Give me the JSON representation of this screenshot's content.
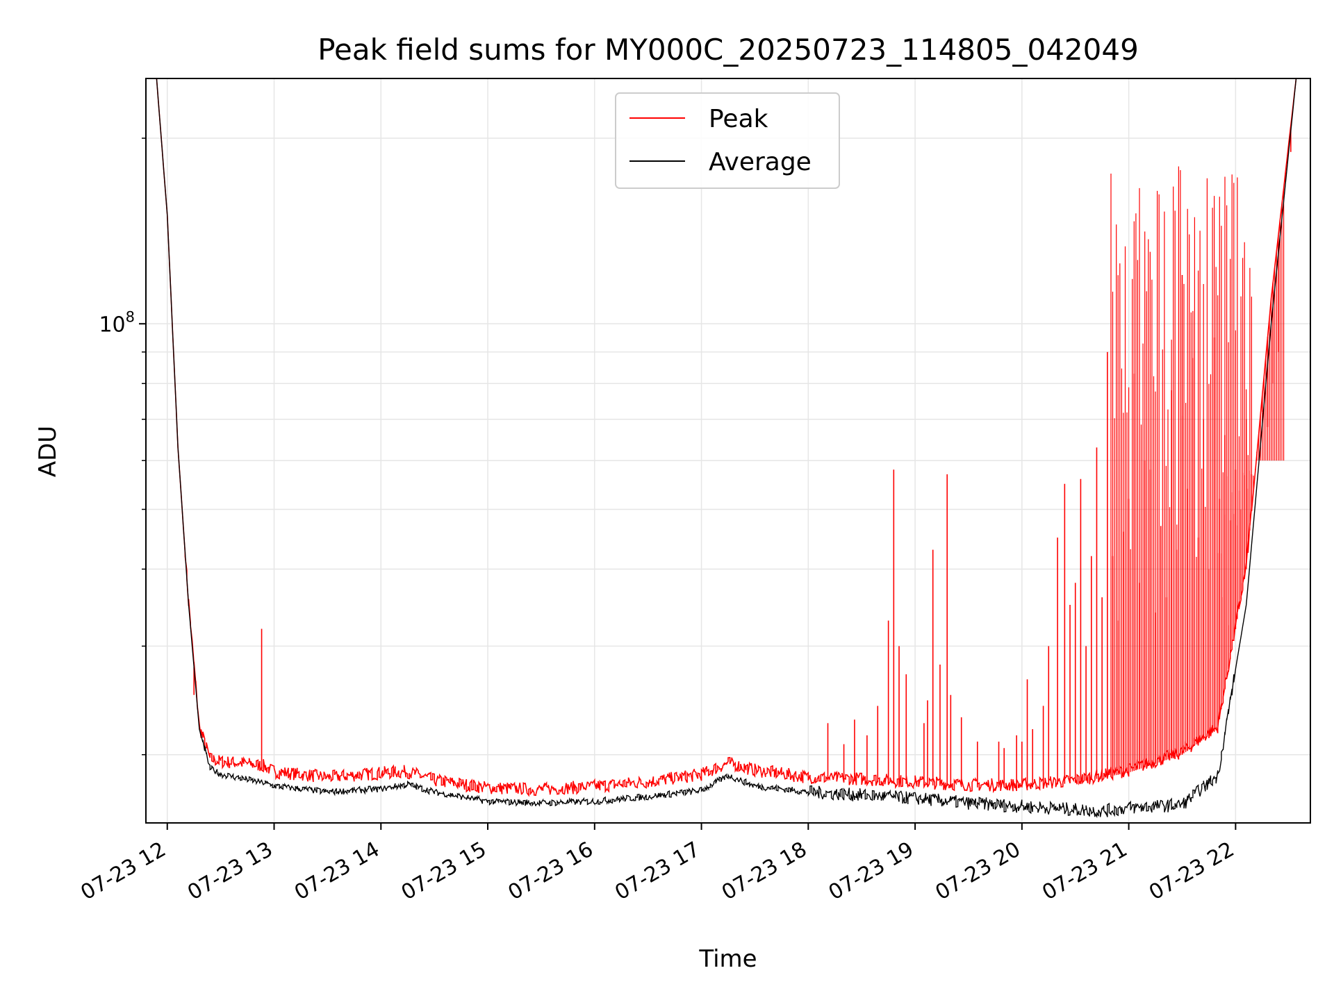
{
  "chart_data": {
    "type": "line",
    "title": "Peak field sums for MY000C_20250723_114805_042049",
    "xlabel": "Time",
    "ylabel": "ADU",
    "y_scale": "log",
    "y_tick_labels": [
      {
        "value": 100000000,
        "base": "10",
        "exp": "8"
      }
    ],
    "y_minor_ticks": [
      20000000,
      30000000,
      40000000,
      50000000,
      60000000,
      70000000,
      80000000,
      90000000,
      200000000
    ],
    "ylim": [
      15500000,
      250000000
    ],
    "xlim": [
      "07-23 11:48",
      "07-23 22:42"
    ],
    "x_ticks": [
      {
        "time": "07-23 12:00",
        "label": "07-23 12"
      },
      {
        "time": "07-23 13:00",
        "label": "07-23 13"
      },
      {
        "time": "07-23 14:00",
        "label": "07-23 14"
      },
      {
        "time": "07-23 15:00",
        "label": "07-23 15"
      },
      {
        "time": "07-23 16:00",
        "label": "07-23 16"
      },
      {
        "time": "07-23 17:00",
        "label": "07-23 17"
      },
      {
        "time": "07-23 18:00",
        "label": "07-23 18"
      },
      {
        "time": "07-23 19:00",
        "label": "07-23 19"
      },
      {
        "time": "07-23 20:00",
        "label": "07-23 20"
      },
      {
        "time": "07-23 21:00",
        "label": "07-23 21"
      },
      {
        "time": "07-23 22:00",
        "label": "07-23 22"
      }
    ],
    "grid": true,
    "legend_position": "top-center",
    "series": [
      {
        "name": "Peak",
        "color": "#ff0000",
        "points": [
          [
            "07-23 11:54",
            250000000
          ],
          [
            "07-23 12:00",
            150000000
          ],
          [
            "07-23 12:06",
            63000000
          ],
          [
            "07-23 12:12",
            35000000
          ],
          [
            "07-23 12:18",
            22000000
          ],
          [
            "07-23 12:24",
            19500000
          ],
          [
            "07-23 12:30",
            19300000
          ],
          [
            "07-23 12:42",
            19200000
          ],
          [
            "07-23 12:54",
            19000000
          ],
          [
            "07-23 13:00",
            18600000
          ],
          [
            "07-23 13:30",
            18200000
          ],
          [
            "07-23 14:00",
            18500000
          ],
          [
            "07-23 14:15",
            18600000
          ],
          [
            "07-23 14:30",
            18000000
          ],
          [
            "07-23 15:00",
            17500000
          ],
          [
            "07-23 15:30",
            17400000
          ],
          [
            "07-23 16:00",
            17600000
          ],
          [
            "07-23 16:30",
            17900000
          ],
          [
            "07-23 17:00",
            18400000
          ],
          [
            "07-23 17:15",
            19200000
          ],
          [
            "07-23 17:30",
            18700000
          ],
          [
            "07-23 18:00",
            18200000
          ],
          [
            "07-23 18:30",
            18100000
          ],
          [
            "07-23 19:00",
            17900000
          ],
          [
            "07-23 19:30",
            17700000
          ],
          [
            "07-23 20:00",
            17700000
          ],
          [
            "07-23 20:30",
            18000000
          ],
          [
            "07-23 21:00",
            18700000
          ],
          [
            "07-23 21:30",
            20000000
          ],
          [
            "07-23 21:50",
            22000000
          ],
          [
            "07-23 22:06",
            40000000
          ],
          [
            "07-23 22:20",
            110000000
          ],
          [
            "07-23 22:34",
            250000000
          ]
        ]
      },
      {
        "name": "Average",
        "color": "#000000",
        "points": [
          [
            "07-23 11:54",
            250000000
          ],
          [
            "07-23 12:00",
            150000000
          ],
          [
            "07-23 12:06",
            63000000
          ],
          [
            "07-23 12:12",
            35000000
          ],
          [
            "07-23 12:18",
            22000000
          ],
          [
            "07-23 12:24",
            19000000
          ],
          [
            "07-23 12:30",
            18600000
          ],
          [
            "07-23 12:42",
            18300000
          ],
          [
            "07-23 12:54",
            18000000
          ],
          [
            "07-23 13:00",
            17800000
          ],
          [
            "07-23 13:30",
            17400000
          ],
          [
            "07-23 14:00",
            17600000
          ],
          [
            "07-23 14:15",
            17900000
          ],
          [
            "07-23 14:30",
            17400000
          ],
          [
            "07-23 15:00",
            16800000
          ],
          [
            "07-23 15:30",
            16700000
          ],
          [
            "07-23 16:00",
            16800000
          ],
          [
            "07-23 16:30",
            17100000
          ],
          [
            "07-23 17:00",
            17500000
          ],
          [
            "07-23 17:15",
            18500000
          ],
          [
            "07-23 17:30",
            17800000
          ],
          [
            "07-23 18:00",
            17400000
          ],
          [
            "07-23 18:30",
            17200000
          ],
          [
            "07-23 19:00",
            17000000
          ],
          [
            "07-23 19:30",
            16700000
          ],
          [
            "07-23 20:00",
            16500000
          ],
          [
            "07-23 20:45",
            16200000
          ],
          [
            "07-23 21:00",
            16400000
          ],
          [
            "07-23 21:30",
            16600000
          ],
          [
            "07-23 21:50",
            18500000
          ],
          [
            "07-23 22:06",
            35000000
          ],
          [
            "07-23 22:20",
            100000000
          ],
          [
            "07-23 22:34",
            250000000
          ]
        ]
      }
    ],
    "peak_spikes": [
      [
        "07-23 12:15",
        25000000
      ],
      [
        "07-23 12:18",
        22000000
      ],
      [
        "07-23 12:53",
        32000000
      ],
      [
        "07-23 18:11",
        22500000
      ],
      [
        "07-23 18:20",
        20800000
      ],
      [
        "07-23 18:26",
        22800000
      ],
      [
        "07-23 18:33",
        21500000
      ],
      [
        "07-23 18:39",
        24000000
      ],
      [
        "07-23 18:45",
        33000000
      ],
      [
        "07-23 18:48",
        58000000
      ],
      [
        "07-23 18:51",
        30000000
      ],
      [
        "07-23 18:55",
        27000000
      ],
      [
        "07-23 19:05",
        22500000
      ],
      [
        "07-23 19:07",
        24500000
      ],
      [
        "07-23 19:10",
        43000000
      ],
      [
        "07-23 19:14",
        28000000
      ],
      [
        "07-23 19:18",
        57000000
      ],
      [
        "07-23 19:20",
        25000000
      ],
      [
        "07-23 19:26",
        23000000
      ],
      [
        "07-23 19:35",
        21000000
      ],
      [
        "07-23 19:47",
        21000000
      ],
      [
        "07-23 19:50",
        20500000
      ],
      [
        "07-23 19:57",
        21500000
      ],
      [
        "07-23 20:00",
        21000000
      ],
      [
        "07-23 20:03",
        26500000
      ],
      [
        "07-23 20:06",
        22000000
      ],
      [
        "07-23 20:12",
        24000000
      ],
      [
        "07-23 20:15",
        30000000
      ],
      [
        "07-23 20:20",
        45000000
      ],
      [
        "07-23 20:24",
        55000000
      ],
      [
        "07-23 20:27",
        35000000
      ],
      [
        "07-23 20:30",
        38000000
      ],
      [
        "07-23 20:33",
        56000000
      ],
      [
        "07-23 20:36",
        30000000
      ],
      [
        "07-23 20:39",
        42000000
      ],
      [
        "07-23 20:42",
        63000000
      ],
      [
        "07-23 20:45",
        36000000
      ],
      [
        "07-23 20:48",
        90000000
      ],
      [
        "07-23 20:51",
        42000000
      ],
      [
        "07-23 20:54",
        33000000
      ],
      [
        "07-23 20:57",
        46000000
      ],
      [
        "07-23 21:00",
        52000000
      ],
      [
        "07-23 21:03",
        83000000
      ],
      [
        "07-23 21:06",
        38000000
      ],
      [
        "07-23 21:09",
        60000000
      ],
      [
        "07-23 21:12",
        58000000
      ],
      [
        "07-23 21:15",
        34000000
      ],
      [
        "07-23 21:18",
        47000000
      ],
      [
        "07-23 21:21",
        36000000
      ],
      [
        "07-23 21:24",
        78000000
      ],
      [
        "07-23 21:27",
        43000000
      ],
      [
        "07-23 21:30",
        120000000
      ],
      [
        "07-23 21:33",
        54000000
      ],
      [
        "07-23 21:36",
        88000000
      ],
      [
        "07-23 21:39",
        45000000
      ],
      [
        "07-23 21:42",
        70000000
      ],
      [
        "07-23 21:45",
        40000000
      ],
      [
        "07-23 21:48",
        95000000
      ],
      [
        "07-23 21:51",
        52000000
      ],
      [
        "07-23 21:54",
        66000000
      ],
      [
        "07-23 21:57",
        48000000
      ],
      [
        "07-23 22:00",
        58000000
      ],
      [
        "07-23 22:03",
        50000000
      ],
      [
        "07-23 22:06",
        70000000
      ],
      [
        "07-23 22:09",
        57000000
      ],
      [
        "07-23 22:12",
        62000000
      ],
      [
        "07-23 22:15",
        72000000
      ],
      [
        "07-23 22:18",
        68000000
      ],
      [
        "07-23 22:21",
        80000000
      ],
      [
        "07-23 22:24",
        90000000
      ],
      [
        "07-23 22:28",
        170000000
      ],
      [
        "07-23 22:31",
        190000000
      ]
    ],
    "dense_spikes": [
      {
        "start": "07-23 20:50",
        "end": "07-23 22:10",
        "max": 180000000
      },
      {
        "start": "07-23 21:50",
        "end": "07-23 22:28",
        "max": 60000000
      }
    ]
  }
}
